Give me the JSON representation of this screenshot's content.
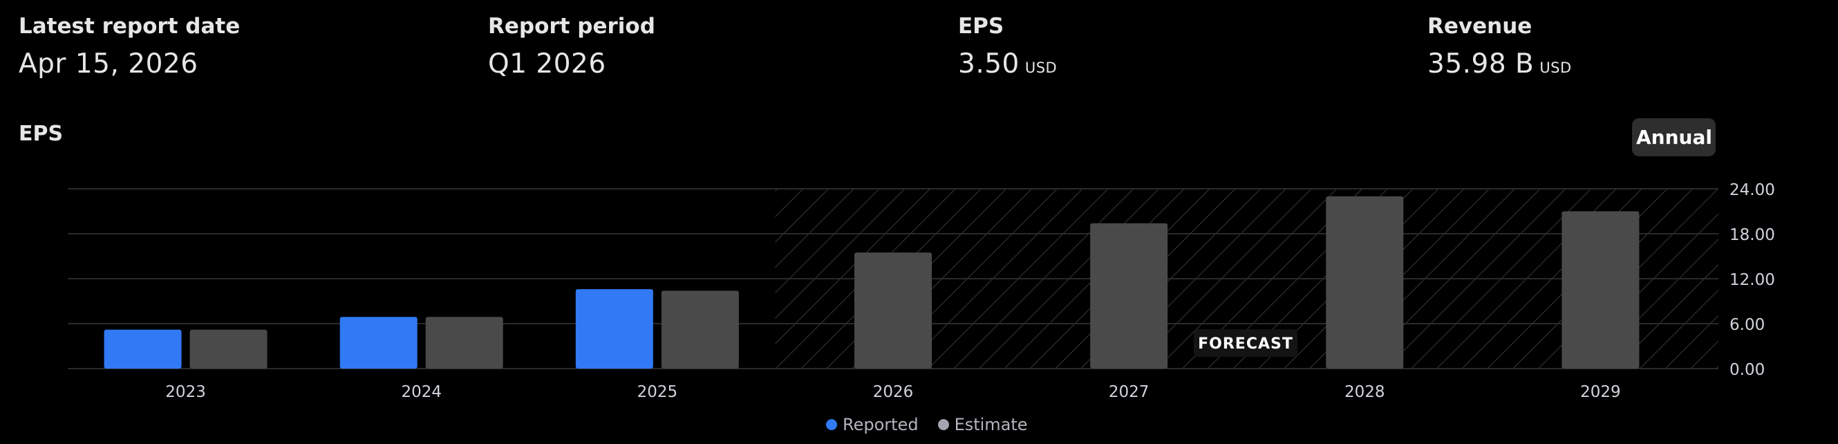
{
  "stats": [
    {
      "label": "Latest report date",
      "value": "Apr 15, 2026",
      "unit": ""
    },
    {
      "label": "Report period",
      "value": "Q1 2026",
      "unit": ""
    },
    {
      "label": "EPS",
      "value": "3.50",
      "unit": "USD"
    },
    {
      "label": "Revenue",
      "value": "35.98 B",
      "unit": "USD"
    }
  ],
  "chart_title": "EPS",
  "period_button": "Annual",
  "forecast_label": "FORECAST",
  "legend": [
    {
      "label": "Reported",
      "color": "#3179f5"
    },
    {
      "label": "Estimate",
      "color": "#a3a6af"
    }
  ],
  "colors": {
    "reported": "#3179f5",
    "estimate": "#4a4a4a",
    "grid": "#2a2a2a"
  },
  "chart_data": {
    "type": "bar",
    "categories": [
      "2023",
      "2024",
      "2025",
      "2026",
      "2027",
      "2028",
      "2029"
    ],
    "series": [
      {
        "name": "Reported",
        "values": [
          5.2,
          6.9,
          10.6,
          null,
          null,
          null,
          null
        ]
      },
      {
        "name": "Estimate",
        "values": [
          5.2,
          6.9,
          10.4,
          15.5,
          19.4,
          23.0,
          21.0
        ]
      }
    ],
    "forecast_from": "2026",
    "ylim": [
      0,
      24
    ],
    "yticks": [
      "0.00",
      "6.00",
      "12.00",
      "18.00",
      "24.00"
    ],
    "ytick_values": [
      0,
      6,
      12,
      18,
      24
    ],
    "y_axis_position": "right",
    "grid": true,
    "legend_position": "bottom-center"
  }
}
